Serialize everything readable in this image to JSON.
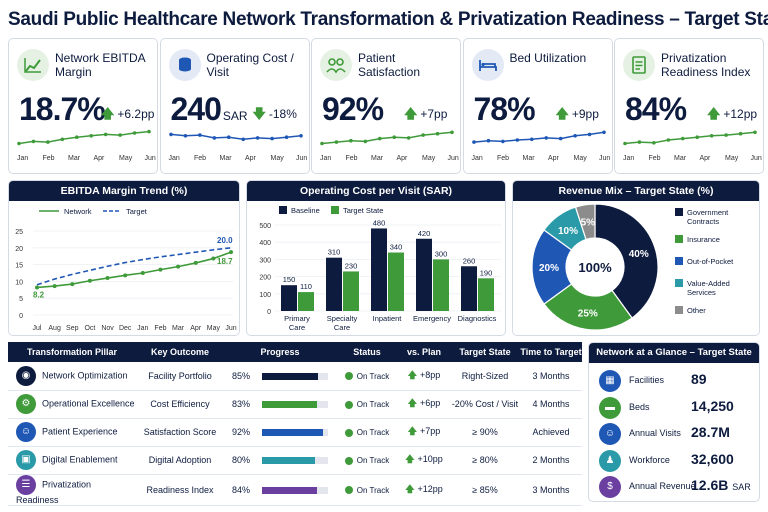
{
  "title": "Saudi Public Healthcare Network Transformation & Privatization Readiness – Target State",
  "months": [
    "Jan",
    "Feb",
    "Mar",
    "Apr",
    "May",
    "Jun"
  ],
  "kpis": [
    {
      "label": "Network EBITDA Margin",
      "value": "18.7%",
      "unit": "",
      "change": "+6.2pp",
      "direction": "up",
      "icon": "chart-growth-icon",
      "spark": [
        1,
        1.3,
        1.2,
        1.6,
        1.9,
        2.1,
        2.3,
        2.2,
        2.5,
        2.7
      ],
      "color": "#3f9a3a"
    },
    {
      "label": "Operating Cost / Visit",
      "value": "240",
      "unit": "SAR",
      "change": "-18%",
      "direction": "down",
      "icon": "coins-icon",
      "spark": [
        2.3,
        2.1,
        2.2,
        1.8,
        1.9,
        1.6,
        1.8,
        1.7,
        1.9,
        2.1
      ],
      "color": "#1f57b5"
    },
    {
      "label": "Patient Satisfaction",
      "value": "92%",
      "unit": "",
      "change": "+7pp",
      "direction": "up",
      "icon": "patients-icon",
      "spark": [
        1.0,
        1.2,
        1.4,
        1.3,
        1.7,
        1.9,
        1.8,
        2.2,
        2.4,
        2.6
      ],
      "color": "#3f9a3a"
    },
    {
      "label": "Bed Utilization",
      "value": "78%",
      "unit": "",
      "change": "+9pp",
      "direction": "up",
      "icon": "bed-icon",
      "spark": [
        1.2,
        1.4,
        1.3,
        1.5,
        1.6,
        1.8,
        1.7,
        2.1,
        2.3,
        2.6
      ],
      "color": "#1f57b5"
    },
    {
      "label": "Privatization Readiness Index",
      "value": "84%",
      "unit": "",
      "change": "+12pp",
      "direction": "up",
      "icon": "checklist-icon",
      "spark": [
        1.0,
        1.2,
        1.1,
        1.5,
        1.7,
        1.9,
        2.1,
        2.2,
        2.4,
        2.6
      ],
      "color": "#3f9a3a"
    }
  ],
  "colors": {
    "navy": "#0d1b3e",
    "green": "#3f9a3a",
    "blue": "#1f57b5",
    "teal": "#2a9aa8",
    "gray": "#8c8c8c"
  },
  "chart_data": [
    {
      "type": "line",
      "title": "EBITDA Margin Trend (%)",
      "x": [
        "Jul",
        "Aug",
        "Sep",
        "Oct",
        "Nov",
        "Dec",
        "Jan",
        "Feb",
        "Mar",
        "Apr",
        "May",
        "Jun"
      ],
      "ylim": [
        0,
        25
      ],
      "yticks": [
        0,
        5,
        10,
        15,
        20,
        25
      ],
      "series": [
        {
          "name": "Network",
          "values": [
            8.2,
            8.6,
            9.2,
            10.2,
            11.0,
            11.8,
            12.5,
            13.5,
            14.4,
            15.5,
            16.8,
            18.7
          ],
          "color": "#3f9a3a",
          "dash": false
        },
        {
          "name": "Target",
          "values": [
            9.0,
            10.7,
            12.1,
            13.3,
            14.5,
            15.6,
            16.5,
            17.3,
            18.0,
            18.7,
            19.4,
            20.0
          ],
          "color": "#1f57b5",
          "dash": true
        }
      ],
      "labels": {
        "first": "8.2",
        "last_network": "18.7",
        "last_target": "20.0"
      }
    },
    {
      "type": "bar",
      "title": "Operating Cost per Visit (SAR)",
      "categories": [
        "Primary Care",
        "Specialty Care",
        "Inpatient",
        "Emergency",
        "Diagnostics"
      ],
      "ylim": [
        0,
        500
      ],
      "yticks": [
        0,
        100,
        200,
        300,
        400,
        500
      ],
      "series": [
        {
          "name": "Baseline",
          "values": [
            150,
            310,
            480,
            420,
            260
          ],
          "color": "#0d1b3e"
        },
        {
          "name": "Target State",
          "values": [
            110,
            230,
            340,
            300,
            190
          ],
          "color": "#3f9a3a"
        }
      ]
    },
    {
      "type": "pie",
      "title": "Revenue Mix – Target State (%)",
      "center_label": "100%",
      "slices": [
        {
          "name": "Government Contracts",
          "value": 40,
          "label": "40%",
          "color": "#0d1b3e"
        },
        {
          "name": "Insurance",
          "value": 25,
          "label": "25%",
          "color": "#3f9a3a"
        },
        {
          "name": "Out-of-Pocket",
          "value": 20,
          "label": "20%",
          "color": "#1f57b5"
        },
        {
          "name": "Value-Added Services",
          "value": 10,
          "label": "10%",
          "color": "#2a9aa8"
        },
        {
          "name": "Other",
          "value": 5,
          "label": "5%",
          "color": "#8c8c8c"
        }
      ]
    }
  ],
  "pillars": {
    "headers": [
      "Transformation Pillar",
      "Key Outcome",
      "Progress",
      "Status",
      "vs. Plan",
      "Target State",
      "Time to Target"
    ],
    "rows": [
      {
        "pillar": "Network Optimization",
        "outcome": "Facility Portfolio",
        "progress": "85%",
        "progress_value": 85,
        "bar_color": "#0d1b3e",
        "status": "On Track",
        "vs_plan": "+8pp",
        "target": "Right-Sized",
        "time": "3 Months",
        "icon": "network-icon",
        "icon_glyph": "◉",
        "icon_color": "#0d1b3e"
      },
      {
        "pillar": "Operational Excellence",
        "outcome": "Cost Efficiency",
        "progress": "83%",
        "progress_value": 83,
        "bar_color": "#3f9a3a",
        "status": "On Track",
        "vs_plan": "+6pp",
        "target": "-20% Cost / Visit",
        "time": "4 Months",
        "icon": "gear-icon",
        "icon_glyph": "⚙",
        "icon_color": "#3f9a3a"
      },
      {
        "pillar": "Patient Experience",
        "outcome": "Satisfaction Score",
        "progress": "92%",
        "progress_value": 92,
        "bar_color": "#1f57b5",
        "status": "On Track",
        "vs_plan": "+7pp",
        "target": "≥ 90%",
        "time": "Achieved",
        "icon": "people-icon",
        "icon_glyph": "☺",
        "icon_color": "#1f57b5"
      },
      {
        "pillar": "Digital Enablement",
        "outcome": "Digital Adoption",
        "progress": "80%",
        "progress_value": 80,
        "bar_color": "#2a9aa8",
        "status": "On Track",
        "vs_plan": "+10pp",
        "target": "≥ 80%",
        "time": "2 Months",
        "icon": "monitor-icon",
        "icon_glyph": "▣",
        "icon_color": "#2a9aa8"
      },
      {
        "pillar": "Privatization Readiness",
        "outcome": "Readiness Index",
        "progress": "84%",
        "progress_value": 84,
        "bar_color": "#6a3fa0",
        "status": "On Track",
        "vs_plan": "+12pp",
        "target": "≥ 85%",
        "time": "3 Months",
        "icon": "clipboard-icon",
        "icon_glyph": "☰",
        "icon_color": "#6a3fa0"
      }
    ]
  },
  "glance": {
    "title": "Network at a Glance – Target State",
    "items": [
      {
        "label": "Facilities",
        "value": "89",
        "unit": "",
        "icon": "building-icon",
        "glyph": "▦",
        "color": "#1f57b5"
      },
      {
        "label": "Beds",
        "value": "14,250",
        "unit": "",
        "icon": "bed-icon",
        "glyph": "▬",
        "color": "#3f9a3a"
      },
      {
        "label": "Annual Visits",
        "value": "28.7M",
        "unit": "",
        "icon": "visits-icon",
        "glyph": "☺",
        "color": "#1f57b5"
      },
      {
        "label": "Workforce",
        "value": "32,600",
        "unit": "",
        "icon": "workforce-icon",
        "glyph": "♟",
        "color": "#2a9aa8"
      },
      {
        "label": "Annual Revenue",
        "value": "12.6B",
        "unit": "SAR",
        "icon": "revenue-icon",
        "glyph": "$",
        "color": "#6a3fa0"
      }
    ]
  }
}
